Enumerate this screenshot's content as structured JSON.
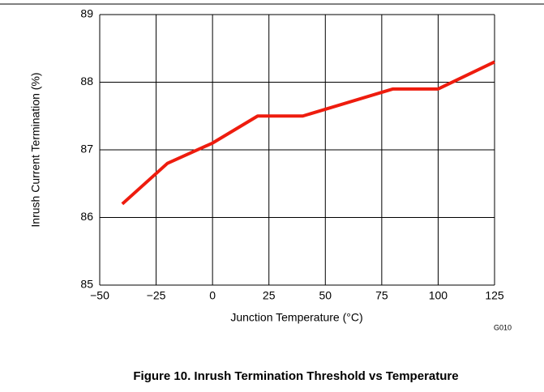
{
  "chart_data": {
    "type": "line",
    "title": "Figure 10. Inrush Termination Threshold vs Temperature",
    "x_label": "Junction Temperature (°C)",
    "y_label": "Inrush Current Termination  (%)",
    "annotation": "G010",
    "x": [
      -40,
      -20,
      0,
      20,
      40,
      80,
      100,
      125
    ],
    "series": [
      {
        "name": "Inrush Current Termination",
        "color": "#ee1c0e",
        "values": [
          86.2,
          86.8,
          87.1,
          87.5,
          87.5,
          87.9,
          87.9,
          88.3
        ]
      }
    ],
    "xlim": [
      -50,
      125
    ],
    "xticks": [
      {
        "value": -50,
        "label": "−50"
      },
      {
        "value": -25,
        "label": "−25"
      },
      0,
      25,
      50,
      75,
      100,
      125
    ],
    "ylim": [
      85,
      89
    ],
    "yticks": [
      85,
      86,
      87,
      88,
      89
    ],
    "grid": true
  }
}
